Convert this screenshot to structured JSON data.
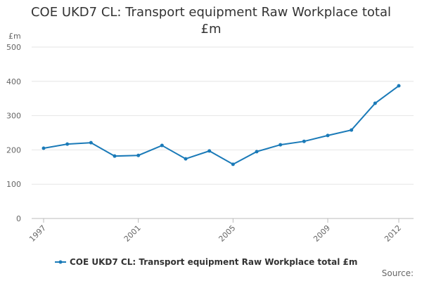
{
  "chart_data": {
    "type": "line",
    "title": "COE UKD7 CL: Transport equipment Raw Workplace total £m",
    "y_label": "£m",
    "source": "Source:",
    "x": [
      1997,
      1998,
      1999,
      2000,
      2001,
      2002,
      2003,
      2004,
      2005,
      2006,
      2007,
      2008,
      2009,
      2010,
      2011,
      2012
    ],
    "xlim": [
      1997,
      2012
    ],
    "xticks": [
      1997,
      2001,
      2005,
      2009,
      2012
    ],
    "ylim": [
      0,
      500
    ],
    "yticks": [
      0,
      100,
      200,
      300,
      400,
      500
    ],
    "grid": true,
    "series": [
      {
        "name": "COE UKD7 CL: Transport equipment Raw Workplace total £m",
        "color": "#1a7ab8",
        "values": [
          205,
          217,
          221,
          182,
          184,
          213,
          174,
          197,
          158,
          195,
          215,
          225,
          242,
          258,
          336,
          387
        ]
      }
    ]
  }
}
